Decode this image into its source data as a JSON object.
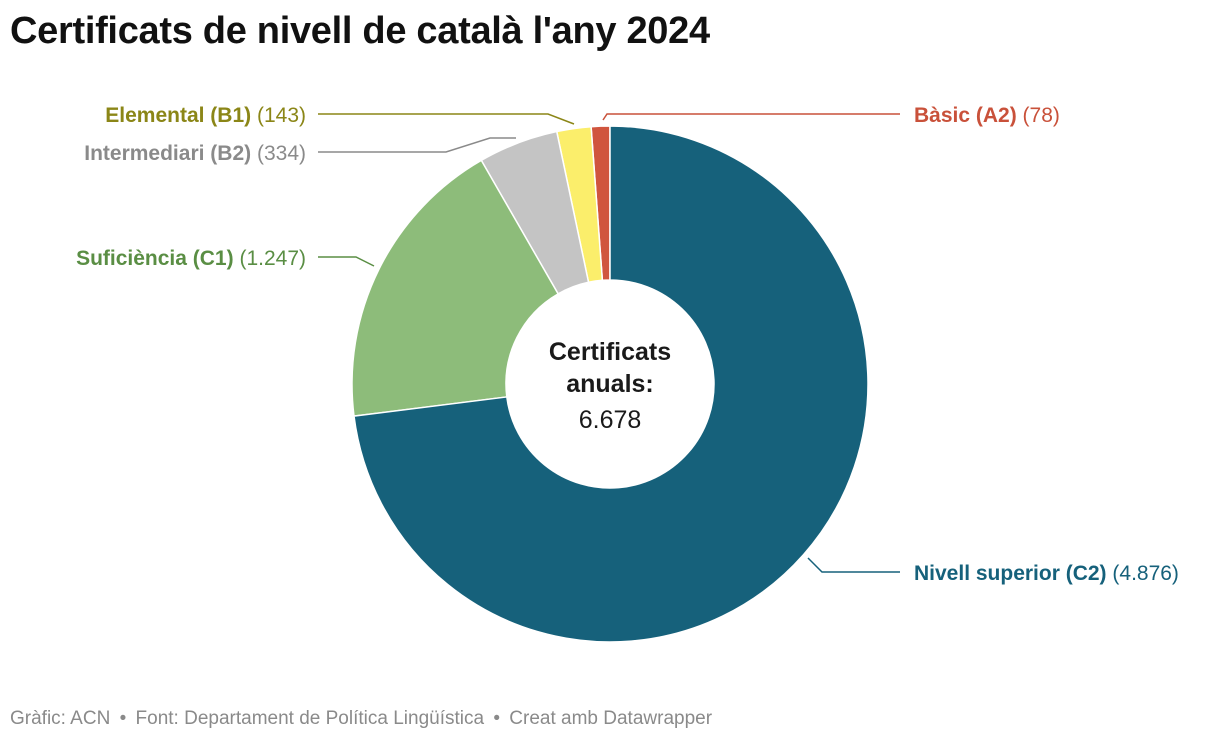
{
  "chart_data": {
    "type": "pie",
    "title": "Certificats de nivell de català l'any 2024",
    "center_label": {
      "title": "Certificats anuals:",
      "title_lines": [
        "Certificats",
        "anuals:"
      ],
      "total": "6.678"
    },
    "slices": [
      {
        "key": "c2",
        "label": "Nivell superior (C2)",
        "value": 4876,
        "value_label": "(4.876)",
        "color": "#16617b",
        "label_color": "#16617b",
        "side": "right"
      },
      {
        "key": "c1",
        "label": "Suficiència (C1)",
        "value": 1247,
        "value_label": "(1.247)",
        "color": "#8dbc7a",
        "label_color": "#5a8e44",
        "side": "left"
      },
      {
        "key": "b2",
        "label": "Intermediari (B2)",
        "value": 334,
        "value_label": "(334)",
        "color": "#c4c4c4",
        "label_color": "#8a8a8a",
        "side": "left"
      },
      {
        "key": "b1",
        "label": "Elemental (B1)",
        "value": 143,
        "value_label": "(143)",
        "color": "#fbee6b",
        "label_color": "#8b8617",
        "side": "left"
      },
      {
        "key": "a2",
        "label": "Bàsic (A2)",
        "value": 78,
        "value_label": "(78)",
        "color": "#d0553e",
        "label_color": "#c9513a",
        "side": "right"
      }
    ]
  },
  "footer": {
    "graphic": "Gràfic: ACN",
    "source": "Font: Departament de Política Lingüística",
    "credit": "Creat amb Datawrapper",
    "separator": "•"
  }
}
